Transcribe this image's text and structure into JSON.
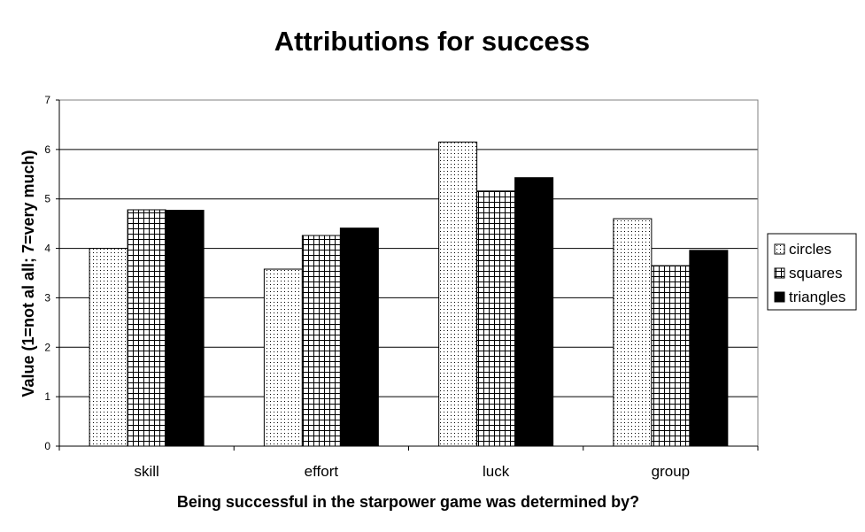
{
  "chart_data": {
    "type": "bar",
    "title": "Attributions for success",
    "xlabel": "Being successful in the starpower game was determined by?",
    "ylabel": "Value (1=not al all; 7=very much)",
    "categories": [
      "skill",
      "effort",
      "luck",
      "group"
    ],
    "series": [
      {
        "name": "circles",
        "values": [
          4.0,
          3.58,
          6.15,
          4.6
        ],
        "pattern": "dots"
      },
      {
        "name": "squares",
        "values": [
          4.78,
          4.26,
          5.16,
          3.65
        ],
        "pattern": "grid"
      },
      {
        "name": "triangles",
        "values": [
          4.77,
          4.41,
          5.43,
          3.96
        ],
        "pattern": "solid"
      }
    ],
    "ylim": [
      0,
      7
    ],
    "yticks": [
      "0",
      "1",
      "2",
      "3",
      "4",
      "5",
      "6",
      "7"
    ],
    "grid": true,
    "legend_position": "right",
    "colors": {
      "background": "#ffffff",
      "bar_fill": "#000000",
      "grid": "#000000"
    }
  }
}
